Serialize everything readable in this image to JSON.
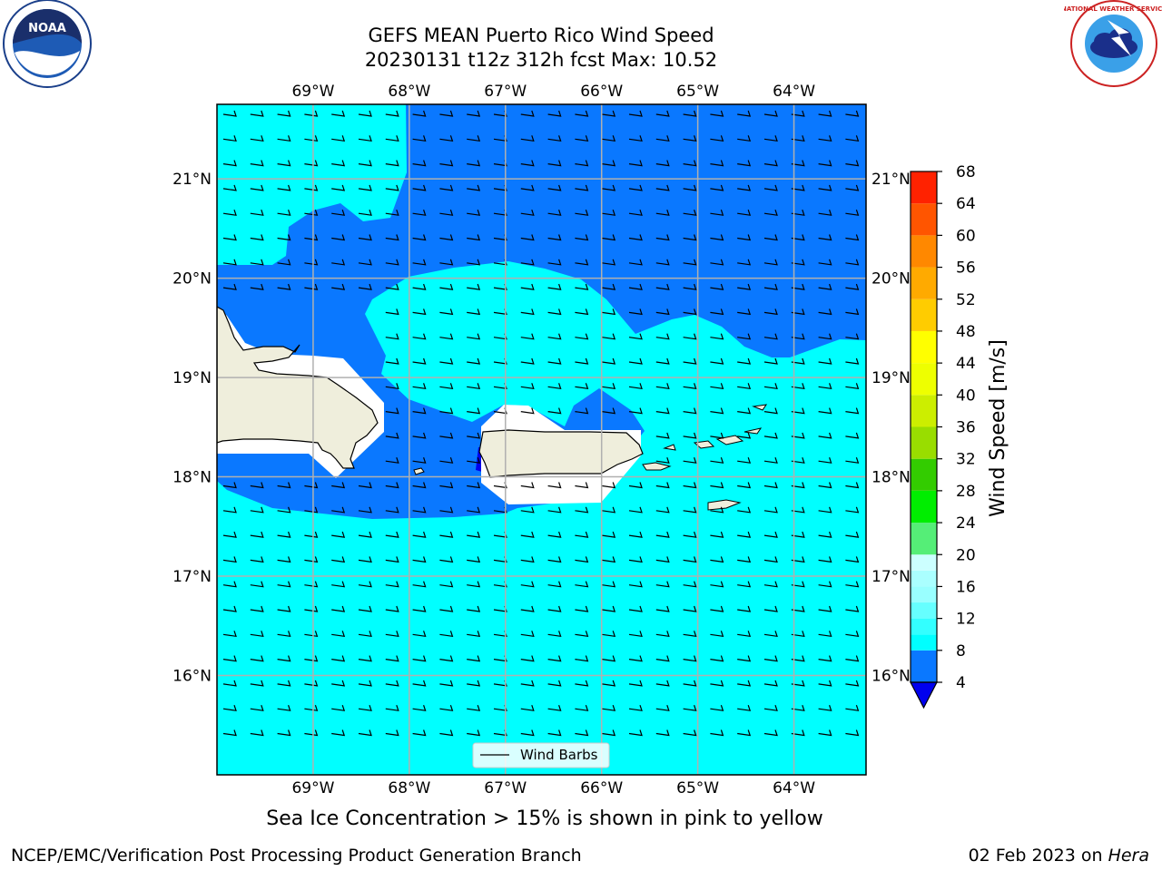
{
  "title": {
    "line1": "GEFS MEAN Puerto Rico Wind Speed",
    "line2": "20230131 t12z 312h fcst   Max: 10.52"
  },
  "axes": {
    "lon_ticks": [
      "69°W",
      "68°W",
      "67°W",
      "66°W",
      "65°W",
      "64°W"
    ],
    "lat_ticks": [
      "21°N",
      "20°N",
      "19°N",
      "18°N",
      "17°N",
      "16°N"
    ],
    "lon_values": [
      -69,
      -68,
      -67,
      -66,
      -65,
      -64
    ],
    "lat_values": [
      21,
      20,
      19,
      18,
      17,
      16
    ],
    "lon_range": [
      -70.0,
      -63.25
    ],
    "lat_range": [
      15.0,
      21.75
    ]
  },
  "colorbar": {
    "label": "Wind Speed [m/s]",
    "ticks": [
      "68",
      "64",
      "60",
      "56",
      "52",
      "48",
      "44",
      "40",
      "36",
      "32",
      "28",
      "24",
      "20",
      "16",
      "12",
      "8",
      "4"
    ],
    "levels": [
      4,
      8,
      10,
      12,
      14,
      16,
      18,
      20,
      24,
      28,
      32,
      36,
      40,
      44,
      48,
      52,
      56,
      60,
      64,
      68
    ],
    "colors": [
      "#0a78ff",
      "#00ffff",
      "#33ffff",
      "#66ffff",
      "#99ffff",
      "#aaffff",
      "#ccffff",
      "#55ee77",
      "#00ee00",
      "#33cc00",
      "#99dd00",
      "#ccee00",
      "#eeff00",
      "#ffff00",
      "#ffcc00",
      "#ffaa00",
      "#ff8800",
      "#ff5500",
      "#ff2200",
      "#ff0000"
    ],
    "under_color": "#0000ee"
  },
  "legend": {
    "label": "Wind Barbs"
  },
  "subtitle": "Sea Ice Concentration > 15% is shown in pink to yellow",
  "footer": {
    "left": "NCEP/EMC/Verification Post Processing Product Generation Branch",
    "right_prefix": "02 Feb 2023 on ",
    "right_italic": "Hera"
  },
  "logos": {
    "noaa": "NOAA",
    "nws": "NATIONAL WEATHER SERVICE"
  },
  "fill_colors": {
    "light": "#00ffff",
    "dark": "#0a78ff",
    "land": "#efeedc"
  }
}
